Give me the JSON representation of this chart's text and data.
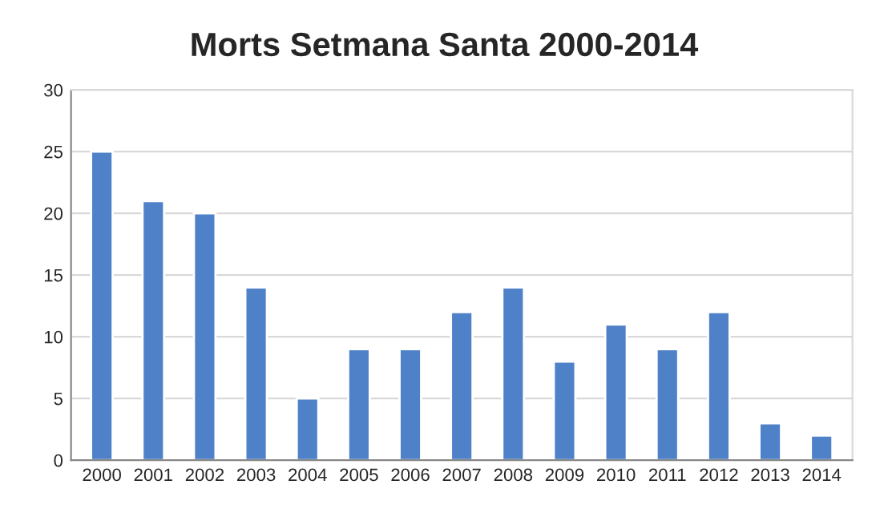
{
  "chart_data": {
    "type": "bar",
    "title": "Morts Setmana Santa 2000-2014",
    "categories": [
      "2000",
      "2001",
      "2002",
      "2003",
      "2004",
      "2005",
      "2006",
      "2007",
      "2008",
      "2009",
      "2010",
      "2011",
      "2012",
      "2013",
      "2014"
    ],
    "values": [
      25,
      21,
      20,
      14,
      5,
      9,
      9,
      12,
      14,
      8,
      11,
      9,
      12,
      3,
      2
    ],
    "color": "#4f81c9",
    "ylim": [
      0,
      30
    ],
    "yticks": [
      0,
      5,
      10,
      15,
      20,
      25,
      30
    ],
    "grid": "y"
  }
}
